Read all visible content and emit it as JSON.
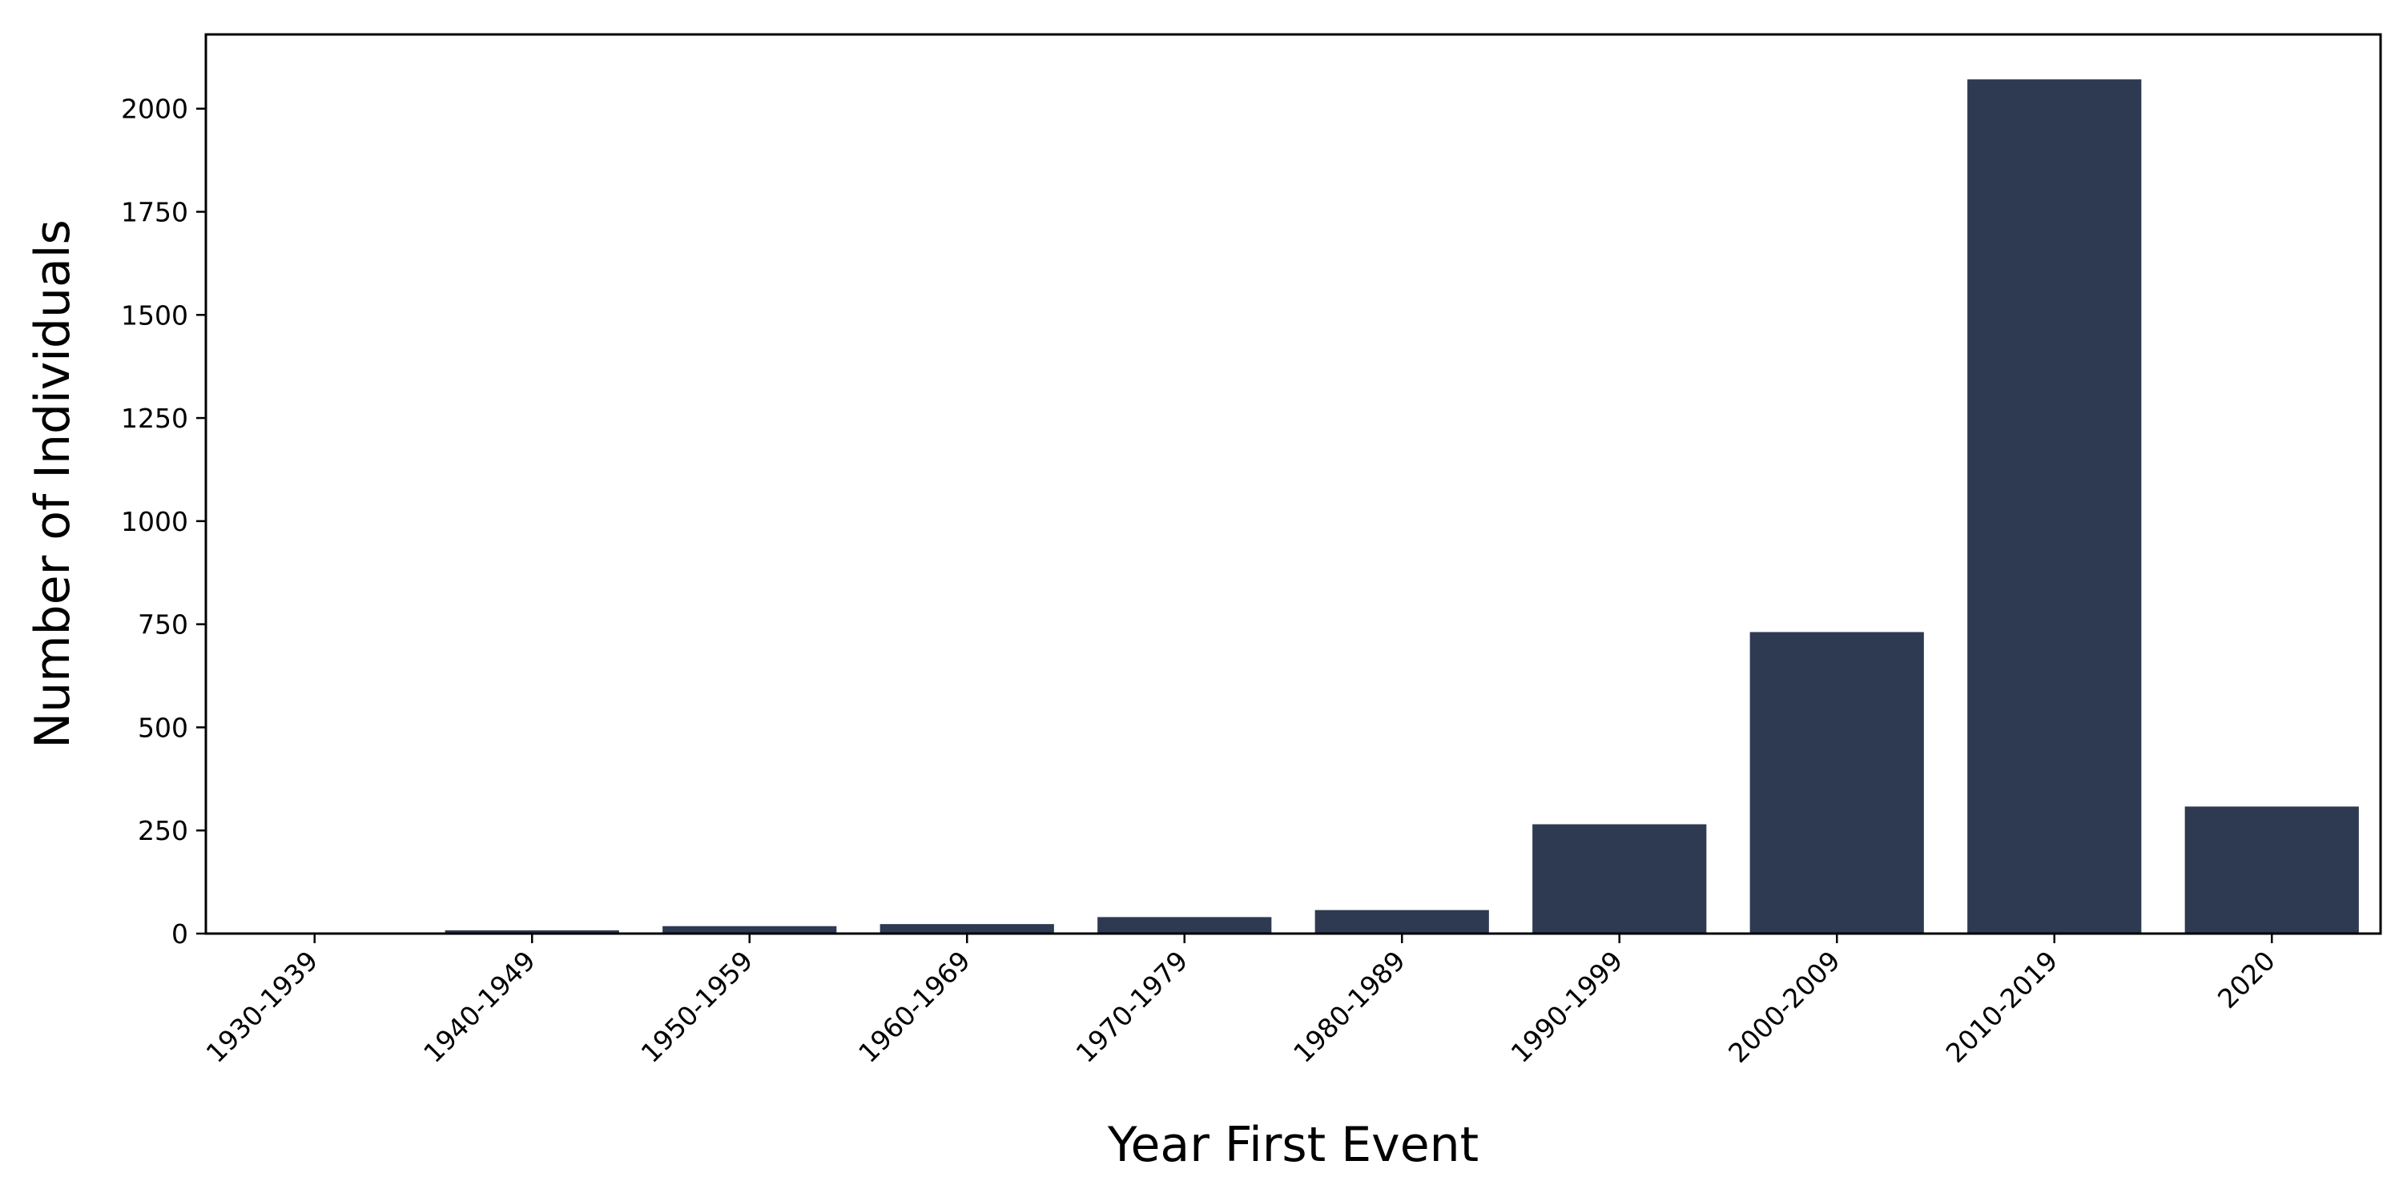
{
  "chart_data": {
    "type": "bar",
    "title": "",
    "xlabel": "Year First Event",
    "ylabel": "Number of Individuals",
    "categories": [
      "1930-1939",
      "1940-1949",
      "1950-1959",
      "1960-1969",
      "1970-1979",
      "1980-1989",
      "1990-1999",
      "2000-2009",
      "2010-2019",
      "2020"
    ],
    "values": [
      2,
      8,
      18,
      23,
      40,
      57,
      265,
      731,
      2071,
      308
    ],
    "ylim": [
      0,
      2180
    ],
    "yticks": [
      0,
      250,
      500,
      750,
      1000,
      1250,
      1500,
      1750,
      2000
    ],
    "bar_color": "#2d3a52",
    "grid": false,
    "legend": "none"
  }
}
